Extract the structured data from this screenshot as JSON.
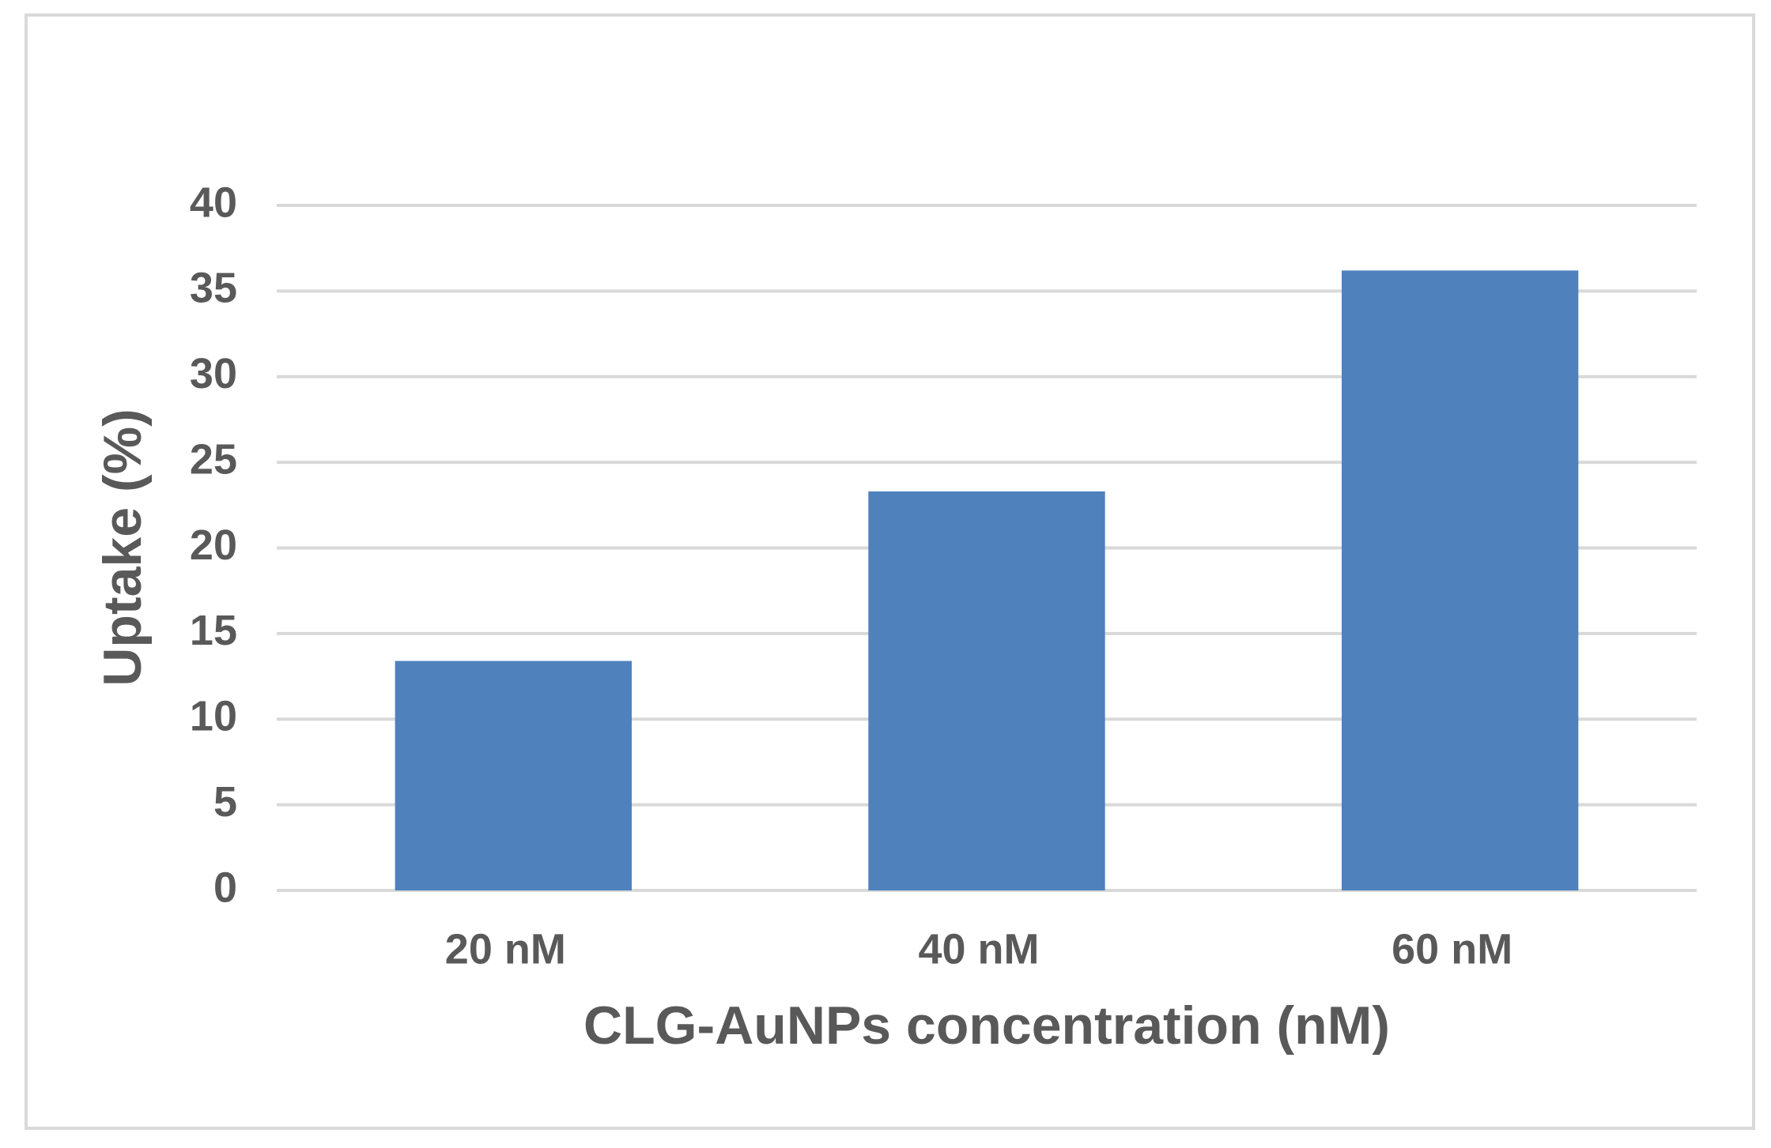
{
  "chart_data": {
    "type": "bar",
    "categories": [
      "20 nM",
      "40 nM",
      "60 nM"
    ],
    "values": [
      13.4,
      23.3,
      36.2
    ],
    "color": "#4f81bd",
    "x_label": "CLG-AuNPs concentration (nM)",
    "y_label": "Uptake (%)",
    "ylim": [
      0,
      40
    ],
    "yticks": [
      0,
      5,
      10,
      15,
      20,
      25,
      30,
      35,
      40
    ],
    "grid": true
  }
}
